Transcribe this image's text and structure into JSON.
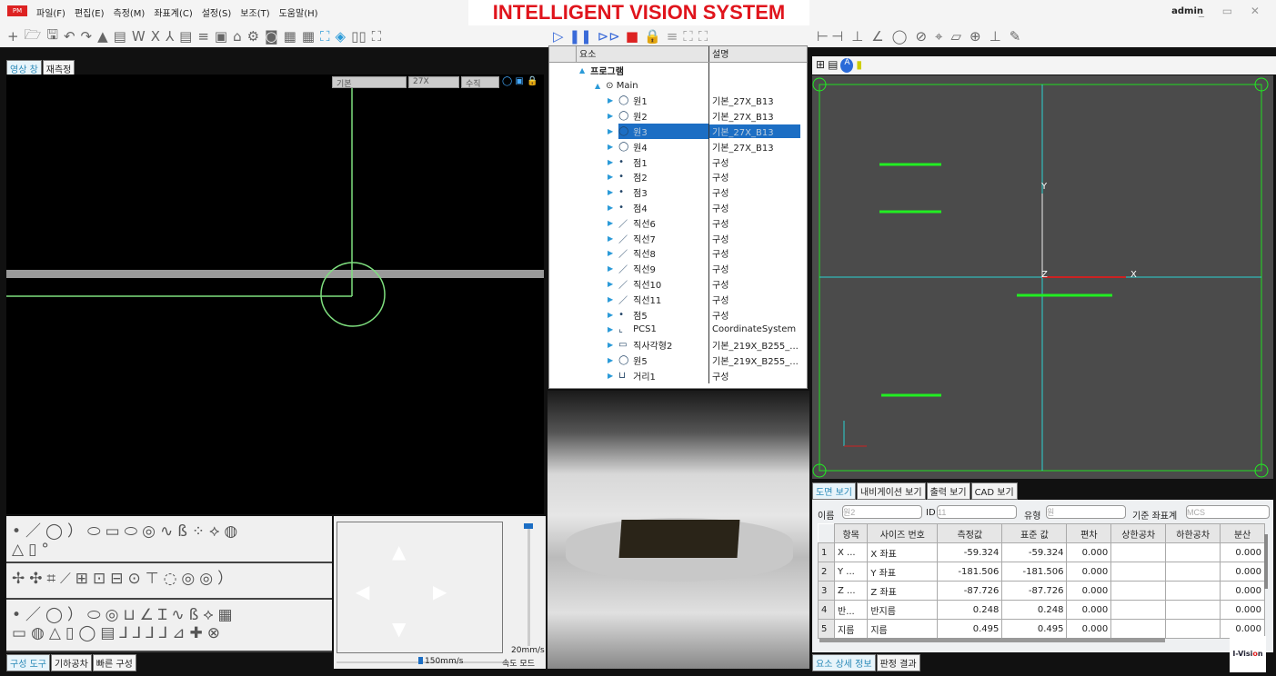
{
  "app": {
    "title": "INTELLIGENT VISION SYSTEM",
    "user": "admin",
    "logo": "PM",
    "brand": "I-Vision"
  },
  "menu": [
    "파일(F)",
    "편집(E)",
    "측정(M)",
    "좌표계(C)",
    "설정(S)",
    "보조(T)",
    "도움말(H)"
  ],
  "left": {
    "tabs": [
      "영상 창",
      "재측정"
    ],
    "dropdowns": [
      "기본",
      "27X",
      "수직"
    ]
  },
  "tool_tabs": [
    "구성 도구",
    "기하공차",
    "빠른 구성"
  ],
  "jog": {
    "speed_xy": "150mm/s",
    "speed_z": "20mm/s",
    "mode": "속도 모드"
  },
  "tree": {
    "headers": [
      "요소",
      "설명"
    ],
    "root": "프로그램",
    "main": "Main",
    "items": [
      {
        "icon": "circle",
        "name": "원1",
        "desc": "기본_27X_B13"
      },
      {
        "icon": "circle",
        "name": "원2",
        "desc": "기본_27X_B13"
      },
      {
        "icon": "circle",
        "name": "원3",
        "desc": "기본_27X_B13",
        "selected": true
      },
      {
        "icon": "circle",
        "name": "원4",
        "desc": "기본_27X_B13"
      },
      {
        "icon": "point",
        "name": "점1",
        "desc": "구성"
      },
      {
        "icon": "point",
        "name": "점2",
        "desc": "구성"
      },
      {
        "icon": "point",
        "name": "점3",
        "desc": "구성"
      },
      {
        "icon": "point",
        "name": "점4",
        "desc": "구성"
      },
      {
        "icon": "line",
        "name": "직선6",
        "desc": "구성"
      },
      {
        "icon": "line",
        "name": "직선7",
        "desc": "구성"
      },
      {
        "icon": "line",
        "name": "직선8",
        "desc": "구성"
      },
      {
        "icon": "line",
        "name": "직선9",
        "desc": "구성"
      },
      {
        "icon": "line",
        "name": "직선10",
        "desc": "구성"
      },
      {
        "icon": "line",
        "name": "직선11",
        "desc": "구성"
      },
      {
        "icon": "point",
        "name": "점5",
        "desc": "구성"
      },
      {
        "icon": "coord",
        "name": "PCS1",
        "desc": "CoordinateSystem"
      },
      {
        "icon": "rect",
        "name": "직사각형2",
        "desc": "기본_219X_B255_..."
      },
      {
        "icon": "circle",
        "name": "원5",
        "desc": "기본_219X_B255_..."
      },
      {
        "icon": "distance",
        "name": "거리1",
        "desc": "구성"
      }
    ]
  },
  "cad": {
    "axes": [
      "X",
      "Y",
      "Z"
    ]
  },
  "right_tabs": [
    "도면 보기",
    "내비게이션 보기",
    "출력 보기",
    "CAD 보기"
  ],
  "detail": {
    "name_label": "이름",
    "name_value": "원2",
    "id_label": "ID",
    "id_value": "11",
    "type_label": "유형",
    "type_value": "원",
    "ref_label": "기준 좌표계",
    "ref_value": "MCS"
  },
  "table": {
    "headers": [
      "항목",
      "사이즈 번호",
      "측정값",
      "표준 값",
      "편차",
      "상한공차",
      "하한공차",
      "분산"
    ],
    "rows": [
      [
        "1",
        "X ...",
        "X 좌표",
        "-59.324",
        "-59.324",
        "0.000",
        "",
        "",
        "0.000"
      ],
      [
        "2",
        "Y ...",
        "Y 좌표",
        "-181.506",
        "-181.506",
        "0.000",
        "",
        "",
        "0.000"
      ],
      [
        "3",
        "Z ...",
        "Z 좌표",
        "-87.726",
        "-87.726",
        "0.000",
        "",
        "",
        "0.000"
      ],
      [
        "4",
        "반...",
        "반지름",
        "0.248",
        "0.248",
        "0.000",
        "",
        "",
        "0.000"
      ],
      [
        "5",
        "지름",
        "지름",
        "0.495",
        "0.495",
        "0.000",
        "",
        "",
        "0.000"
      ]
    ]
  },
  "bottom_tabs": [
    "요소 상세 정보",
    "판정 결과"
  ],
  "colors": {
    "title": "#e0141c",
    "accent": "#2a8ab8",
    "selection": "#1c6ec4",
    "cad_line": "#2bd0d0",
    "feature": "#22ee22"
  }
}
